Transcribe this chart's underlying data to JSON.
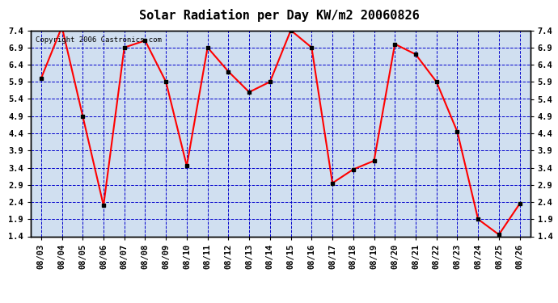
{
  "title": "Solar Radiation per Day KW/m2 20060826",
  "copyright": "Copyright 2006 Castronics.com",
  "dates": [
    "08/03",
    "08/04",
    "08/05",
    "08/06",
    "08/07",
    "08/08",
    "08/09",
    "08/10",
    "08/11",
    "08/12",
    "08/13",
    "08/14",
    "08/15",
    "08/16",
    "08/17",
    "08/18",
    "08/19",
    "08/20",
    "08/21",
    "08/22",
    "08/23",
    "08/24",
    "08/25",
    "08/26"
  ],
  "values": [
    6.0,
    7.5,
    4.9,
    2.3,
    6.9,
    7.1,
    5.9,
    3.45,
    6.9,
    6.2,
    5.6,
    5.9,
    7.4,
    6.9,
    2.95,
    3.35,
    3.6,
    7.0,
    6.7,
    5.9,
    4.45,
    1.9,
    1.45,
    2.35
  ],
  "ylim": [
    1.4,
    7.4
  ],
  "yticks": [
    1.4,
    1.9,
    2.4,
    2.9,
    3.4,
    3.9,
    4.4,
    4.9,
    5.4,
    5.9,
    6.4,
    6.9,
    7.4
  ],
  "line_color": "#ff0000",
  "marker_color": "#000000",
  "grid_color": "#0000cc",
  "bg_color": "#d0dff0",
  "title_fontsize": 11,
  "tick_fontsize": 7.5,
  "copyright_fontsize": 6.5
}
